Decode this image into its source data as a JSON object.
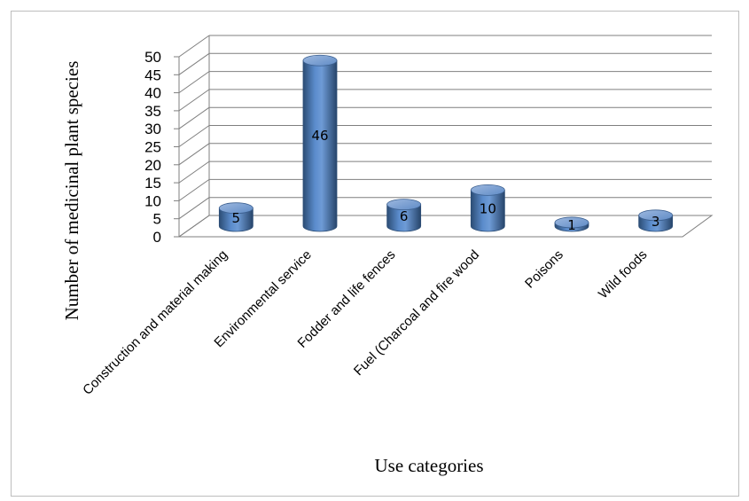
{
  "chart_data": {
    "type": "bar",
    "style": "3d-cylinder",
    "categories": [
      "Construction and material making",
      "Environmental service",
      "Fodder and life fences",
      "Fuel (Charcoal and fire wood",
      "Poisons",
      "Wild foods"
    ],
    "values": [
      5,
      46,
      6,
      10,
      1,
      3
    ],
    "xlabel": "Use categories",
    "ylabel": "Number of medicinal plant species",
    "ylim": [
      0,
      50
    ],
    "yticks": [
      0,
      5,
      10,
      15,
      20,
      25,
      30,
      35,
      40,
      45,
      50
    ],
    "grid": true,
    "legend": "none",
    "colors": {
      "bar": "#4f81bd",
      "bar_dark": "#2c4d75",
      "bar_light": "#a7c0e3",
      "grid": "#7f7f7f"
    }
  }
}
